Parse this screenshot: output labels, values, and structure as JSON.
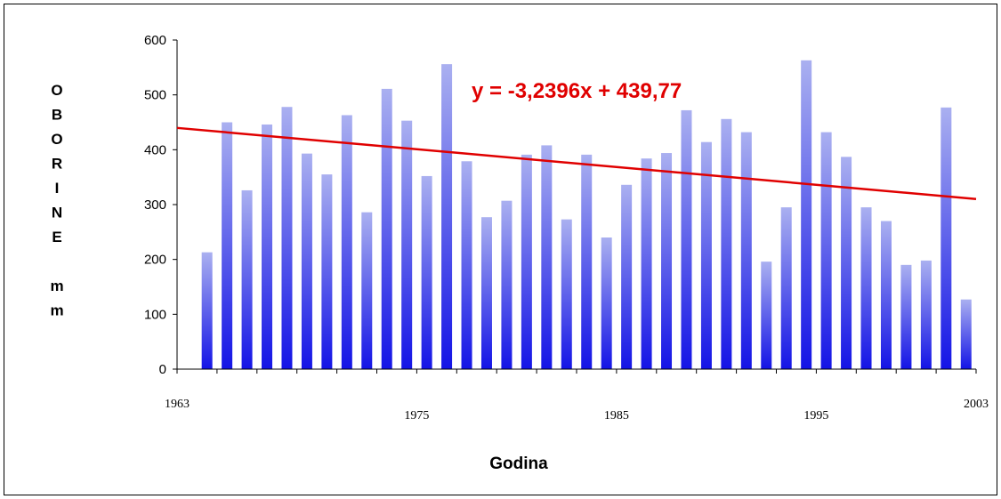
{
  "chart_data": {
    "type": "bar",
    "xlabel": "Godina",
    "ylabel_letters": [
      "O",
      "B",
      "O",
      "R",
      "I",
      "N",
      "E",
      "",
      "m",
      "m"
    ],
    "xlim": [
      1963,
      2003
    ],
    "ylim": [
      0,
      600
    ],
    "y_ticks": [
      0,
      100,
      200,
      300,
      400,
      500,
      600
    ],
    "x_ticks": [
      1963,
      1975,
      1985,
      1995,
      2003
    ],
    "bar_color_top": "#aab0f0",
    "bar_color_bottom": "#1414e6",
    "trendline_color": "#e00000",
    "trendline": {
      "slope": -3.2396,
      "intercept": 439.77,
      "label": "y = -3,2396x + 439,77"
    },
    "x": [
      1964,
      1965,
      1966,
      1967,
      1968,
      1969,
      1970,
      1971,
      1972,
      1973,
      1974,
      1975,
      1976,
      1977,
      1978,
      1979,
      1980,
      1981,
      1982,
      1983,
      1984,
      1985,
      1986,
      1987,
      1988,
      1989,
      1990,
      1991,
      1992,
      1993,
      1994,
      1995,
      1996,
      1997,
      1998,
      1999,
      2000,
      2001,
      2002,
      2003
    ],
    "values": [
      213,
      450,
      326,
      446,
      478,
      393,
      355,
      463,
      286,
      511,
      453,
      352,
      556,
      379,
      277,
      307,
      391,
      408,
      273,
      391,
      240,
      336,
      384,
      394,
      472,
      414,
      456,
      432,
      196,
      295,
      563,
      432,
      387,
      295,
      270,
      190,
      198,
      477,
      127,
      0
    ]
  }
}
